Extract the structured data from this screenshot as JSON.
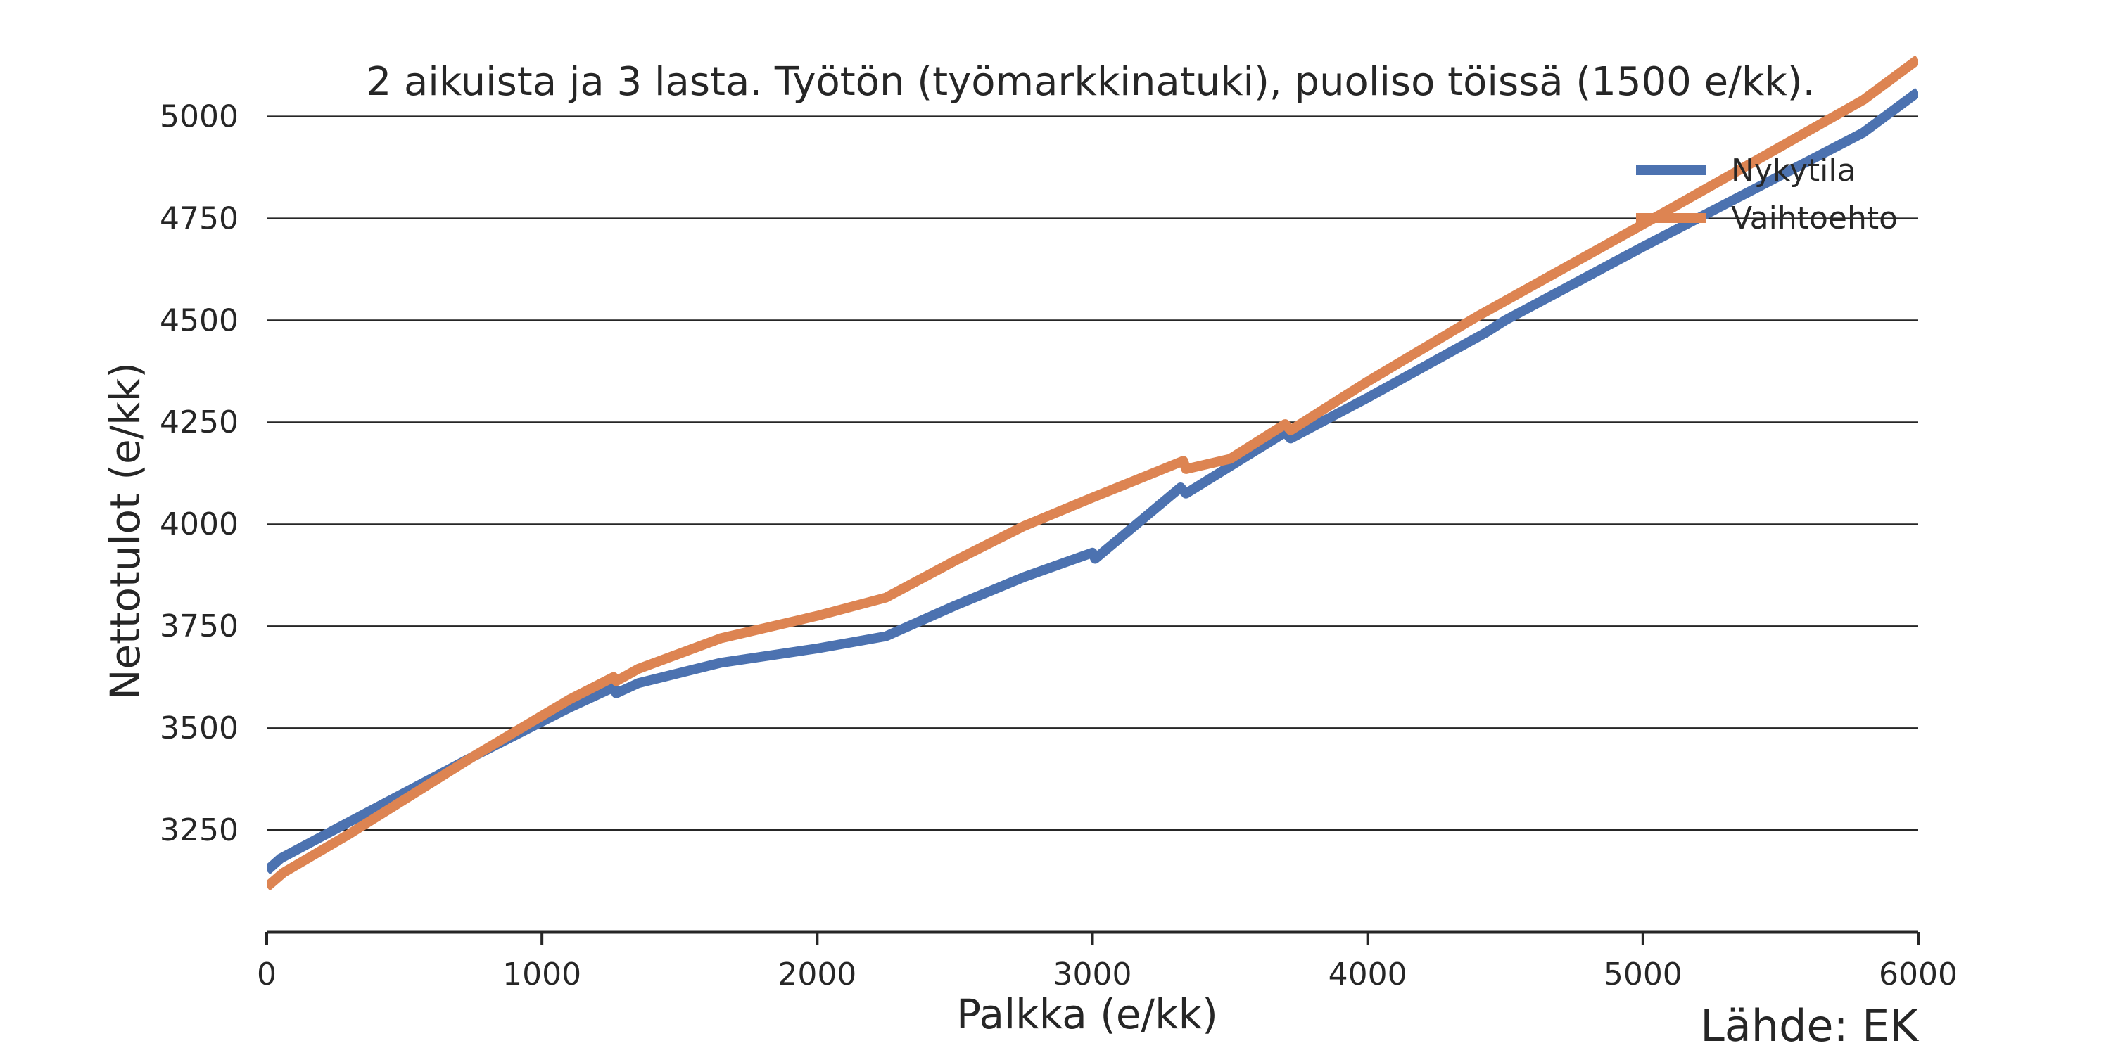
{
  "chart_data": {
    "type": "line",
    "title": "2 aikuista ja 3 lasta. Työtön (työmarkkinatuki), puoliso töissä (1500 e/kk).",
    "xlabel": "Palkka (e/kk)",
    "ylabel": "Nettotulot (e/kk)",
    "xlim": [
      0,
      6000
    ],
    "ylim": [
      3000,
      5130
    ],
    "x_ticks": [
      0,
      1000,
      2000,
      3000,
      4000,
      5000,
      6000
    ],
    "y_ticks": [
      3250,
      3500,
      3750,
      4000,
      4250,
      4500,
      4750,
      5000
    ],
    "grid": "horizontal",
    "legend_position": "top-right",
    "source": "Lähde: EK",
    "series": [
      {
        "name": "Nykytila",
        "color": "#4C72B0",
        "points": [
          [
            0,
            3150
          ],
          [
            50,
            3180
          ],
          [
            300,
            3270
          ],
          [
            750,
            3430
          ],
          [
            1100,
            3550
          ],
          [
            1260,
            3600
          ],
          [
            1270,
            3585
          ],
          [
            1350,
            3610
          ],
          [
            1650,
            3660
          ],
          [
            2000,
            3695
          ],
          [
            2250,
            3725
          ],
          [
            2500,
            3800
          ],
          [
            2750,
            3870
          ],
          [
            3000,
            3930
          ],
          [
            3010,
            3915
          ],
          [
            3320,
            4090
          ],
          [
            3340,
            4075
          ],
          [
            3700,
            4225
          ],
          [
            3720,
            4210
          ],
          [
            4000,
            4310
          ],
          [
            4430,
            4470
          ],
          [
            4500,
            4500
          ],
          [
            5000,
            4680
          ],
          [
            5800,
            4960
          ],
          [
            6000,
            5060
          ]
        ]
      },
      {
        "name": "Vaihtoehto",
        "color": "#DD8452",
        "points": [
          [
            0,
            3110
          ],
          [
            60,
            3145
          ],
          [
            300,
            3240
          ],
          [
            750,
            3430
          ],
          [
            1100,
            3570
          ],
          [
            1260,
            3625
          ],
          [
            1270,
            3615
          ],
          [
            1350,
            3645
          ],
          [
            1650,
            3720
          ],
          [
            2000,
            3775
          ],
          [
            2250,
            3820
          ],
          [
            2500,
            3910
          ],
          [
            2750,
            3995
          ],
          [
            3000,
            4065
          ],
          [
            3330,
            4155
          ],
          [
            3340,
            4135
          ],
          [
            3500,
            4160
          ],
          [
            3700,
            4245
          ],
          [
            3720,
            4230
          ],
          [
            4000,
            4350
          ],
          [
            4400,
            4510
          ],
          [
            5000,
            4735
          ],
          [
            5800,
            5040
          ],
          [
            6000,
            5140
          ]
        ]
      }
    ]
  }
}
